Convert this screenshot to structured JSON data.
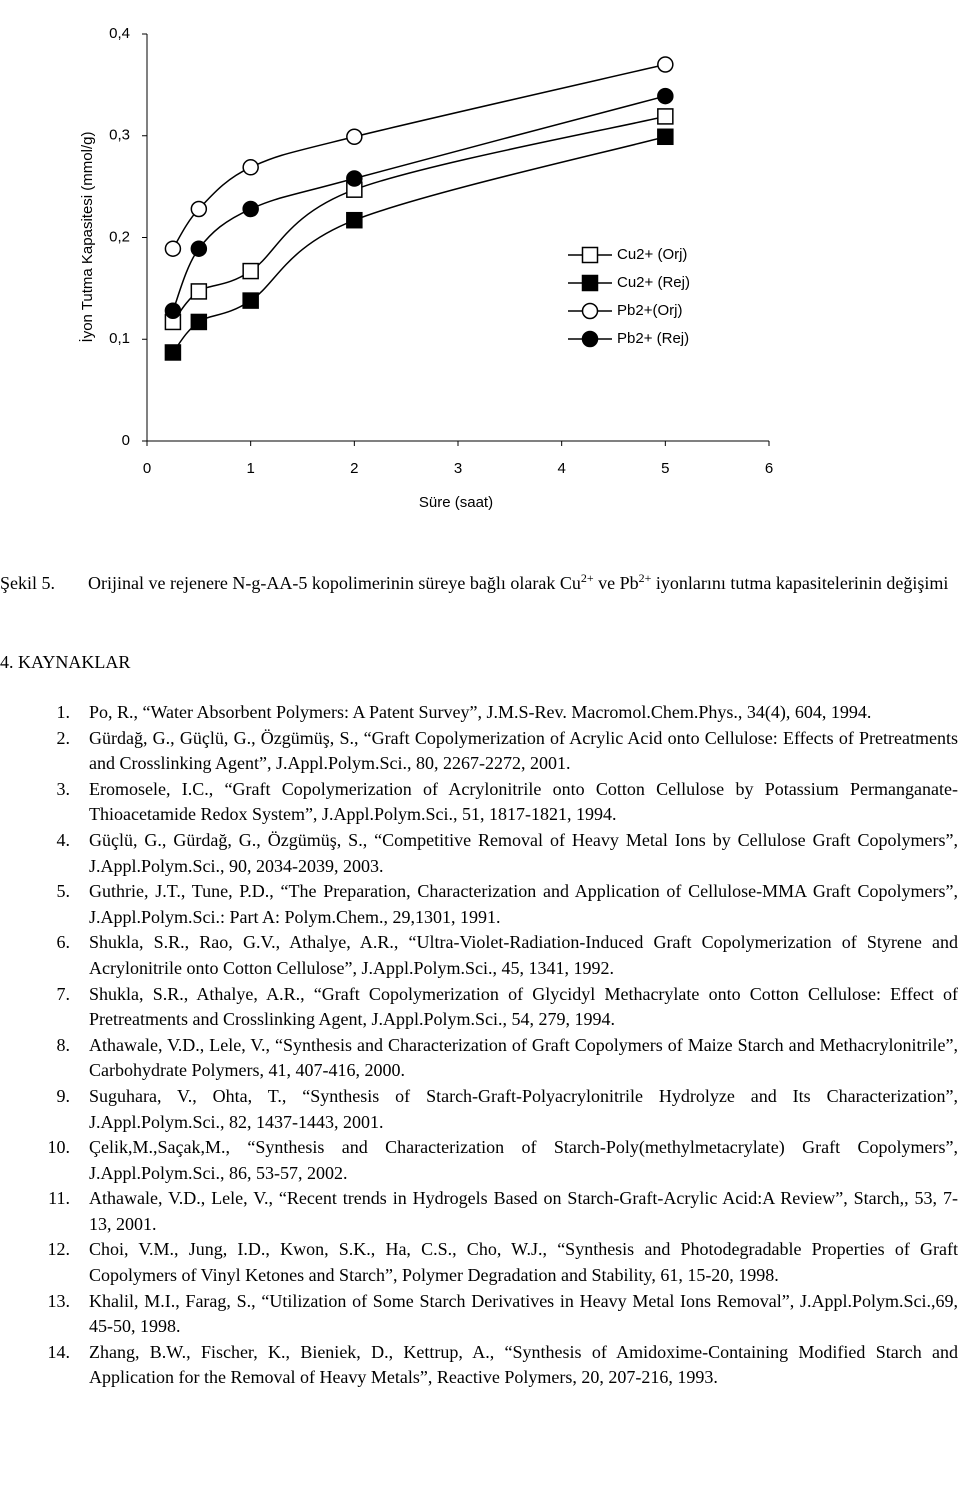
{
  "chart_data": {
    "type": "line",
    "x_label": "Süre (saat)",
    "y_label": "İyon Tutma Kapasitesi (mmol/g)",
    "x": [
      0.25,
      0.5,
      1,
      2,
      5
    ],
    "series": [
      {
        "name": "Cu2+ (Orj)",
        "color": "#000000",
        "marker": "square",
        "filled": false,
        "values": [
          0.117,
          0.147,
          0.167,
          0.247,
          0.319
        ]
      },
      {
        "name": "Cu2+ (Rej)",
        "color": "#000000",
        "marker": "square",
        "filled": true,
        "values": [
          0.087,
          0.117,
          0.138,
          0.217,
          0.299
        ]
      },
      {
        "name": "Pb2+(Orj)",
        "color": "#000000",
        "marker": "circle",
        "filled": false,
        "values": [
          0.189,
          0.228,
          0.269,
          0.299,
          0.37
        ]
      },
      {
        "name": "Pb2+ (Rej)",
        "color": "#000000",
        "marker": "circle",
        "filled": true,
        "values": [
          0.128,
          0.189,
          0.228,
          0.258,
          0.339
        ]
      }
    ],
    "xlim": [
      0,
      6
    ],
    "xticks": [
      0,
      1,
      2,
      3,
      4,
      5,
      6
    ],
    "ylim": [
      0,
      0.4
    ],
    "yticks": [
      0,
      {
        "value": 0.1,
        "label": "0,1"
      },
      {
        "value": 0.2,
        "label": "0,2"
      },
      {
        "value": 0.3,
        "label": "0,3"
      },
      {
        "value": 0.4,
        "label": "0,4"
      }
    ],
    "grid": false,
    "legend": "right"
  },
  "caption": {
    "label": "Şekil 5.",
    "parts": [
      "Orijinal ve rejenere N-g-AA-5 kopolimerinin süreye bağlı olarak Cu",
      "2+",
      " ve Pb",
      "2+",
      " iyonlarını tutma kapasitelerinin değişimi"
    ]
  },
  "heading": "4. KAYNAKLAR",
  "references": [
    {
      "number": "1.",
      "text": "Po, R., “Water Absorbent Polymers: A Patent Survey”, J.M.S-Rev. Macromol.Chem.Phys., 34(4), 604, 1994."
    },
    {
      "number": "2.",
      "text": "Gürdağ, G., Güçlü, G., Özgümüş, S., “Graft Copolymerization of Acrylic Acid onto Cellulose: Effects of Pretreatments and Crosslinking Agent”, J.Appl.Polym.Sci., 80, 2267-2272, 2001."
    },
    {
      "number": "3.",
      "text": "Eromosele, I.C., “Graft Copolymerization of Acrylonitrile onto Cotton Cellulose by Potassium Permanganate-Thioacetamide Redox System”, J.Appl.Polym.Sci., 51, 1817-1821, 1994."
    },
    {
      "number": "4.",
      "text": "Güçlü, G., Gürdağ, G., Özgümüş, S., “Competitive Removal of Heavy Metal Ions by Cellulose Graft Copolymers”, J.Appl.Polym.Sci., 90, 2034-2039, 2003."
    },
    {
      "number": "5.",
      "text": "Guthrie, J.T., Tune, P.D., “The Preparation, Characterization and Application of Cellulose-MMA Graft Copolymers”, J.Appl.Polym.Sci.: Part A: Polym.Chem., 29,1301, 1991."
    },
    {
      "number": "6.",
      "text": "Shukla, S.R., Rao, G.V., Athalye, A.R., “Ultra-Violet-Radiation-Induced Graft Copolymerization of Styrene and Acrylonitrile onto Cotton Cellulose”, J.Appl.Polym.Sci., 45, 1341, 1992."
    },
    {
      "number": "7.",
      "text": "Shukla, S.R., Athalye, A.R., “Graft Copolymerization of Glycidyl Methacrylate onto Cotton Cellulose: Effect of Pretreatments and Crosslinking Agent, J.Appl.Polym.Sci., 54, 279, 1994."
    },
    {
      "number": "8.",
      "text": "Athawale, V.D., Lele, V., “Synthesis and Characterization of Graft Copolymers of Maize Starch and Methacrylonitrile”, Carbohydrate Polymers, 41, 407-416, 2000."
    },
    {
      "number": "9.",
      "text": "Suguhara, V., Ohta, T., “Synthesis of Starch-Graft-Polyacrylonitrile Hydrolyze and Its Characterization”, J.Appl.Polym.Sci., 82, 1437-1443, 2001."
    },
    {
      "number": "10.",
      "text": "Çelik,M.,Saçak,M., “Synthesis and Characterization of Starch-Poly(methylmetacrylate) Graft Copolymers”, J.Appl.Polym.Sci., 86, 53-57, 2002."
    },
    {
      "number": "11.",
      "text": "Athawale, V.D., Lele, V., “Recent trends in Hydrogels Based on Starch-Graft-Acrylic Acid:A Review”, Starch,, 53, 7-13, 2001."
    },
    {
      "number": "12.",
      "text": "Choi, V.M., Jung, I.D., Kwon, S.K., Ha, C.S., Cho, W.J., “Synthesis and Photodegradable Properties of Graft Copolymers of Vinyl Ketones and Starch”, Polymer Degradation and Stability, 61, 15-20, 1998."
    },
    {
      "number": "13.",
      "text": "Khalil, M.I., Farag, S., “Utilization of Some Starch Derivatives in Heavy Metal Ions Removal”, J.Appl.Polym.Sci.,69, 45-50, 1998."
    },
    {
      "number": "14.",
      "text": "Zhang, B.W., Fischer, K., Bieniek, D., Kettrup, A., “Synthesis of Amidoxime-Containing Modified Starch and Application for the Removal of Heavy Metals”, Reactive Polymers, 20, 207-216, 1993."
    }
  ]
}
